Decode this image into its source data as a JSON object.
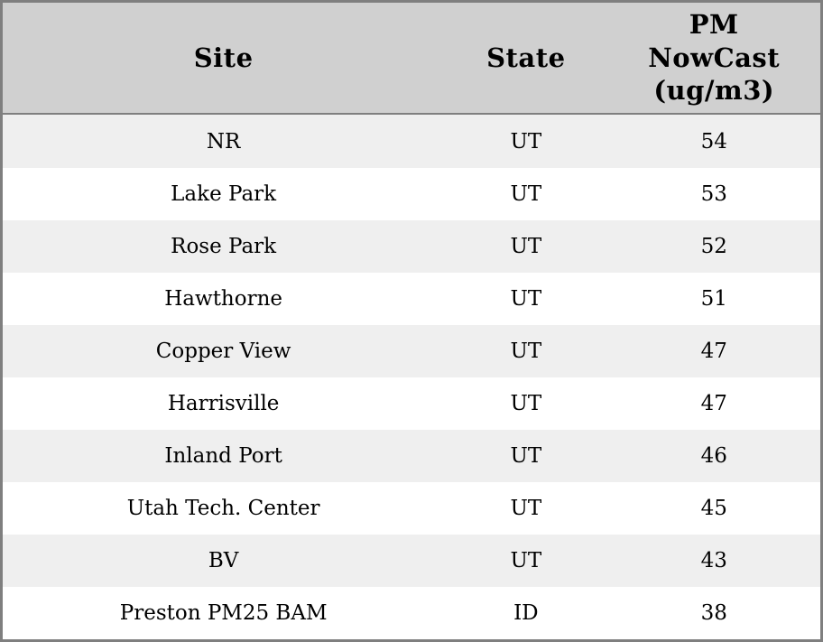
{
  "chart_data": {
    "type": "table",
    "title": "",
    "columns": [
      "Site",
      "State",
      "PM NowCast (ug/m3)"
    ],
    "rows": [
      [
        "NR",
        "UT",
        54
      ],
      [
        "Lake Park",
        "UT",
        53
      ],
      [
        "Rose Park",
        "UT",
        52
      ],
      [
        "Hawthorne",
        "UT",
        51
      ],
      [
        "Copper View",
        "UT",
        47
      ],
      [
        "Harrisville",
        "UT",
        47
      ],
      [
        "Inland Port",
        "UT",
        46
      ],
      [
        "Utah Tech. Center",
        "UT",
        45
      ],
      [
        "BV",
        "UT",
        43
      ],
      [
        "Preston PM25 BAM",
        "ID",
        38
      ]
    ],
    "layout_hints": {
      "header_wrapped_lines": [
        "PM",
        "NowCast",
        "(ug/m3)"
      ],
      "row_striping": "alternating, first data row shaded",
      "alignment": "all cells centered"
    }
  },
  "table": {
    "columns": [
      {
        "key": "site",
        "label": "Site",
        "display": "Site"
      },
      {
        "key": "state",
        "label": "State",
        "display": "State"
      },
      {
        "key": "pm_nowcast",
        "label": "PM NowCast (ug/m3)",
        "display": "PM\nNowCast\n(ug/m3)"
      }
    ],
    "rows": [
      {
        "site": "NR",
        "state": "UT",
        "pm_nowcast": "54"
      },
      {
        "site": "Lake Park",
        "state": "UT",
        "pm_nowcast": "53"
      },
      {
        "site": "Rose Park",
        "state": "UT",
        "pm_nowcast": "52"
      },
      {
        "site": "Hawthorne",
        "state": "UT",
        "pm_nowcast": "51"
      },
      {
        "site": "Copper View",
        "state": "UT",
        "pm_nowcast": "47"
      },
      {
        "site": "Harrisville",
        "state": "UT",
        "pm_nowcast": "47"
      },
      {
        "site": "Inland Port",
        "state": "UT",
        "pm_nowcast": "46"
      },
      {
        "site": "Utah Tech. Center",
        "state": "UT",
        "pm_nowcast": "45"
      },
      {
        "site": "BV",
        "state": "UT",
        "pm_nowcast": "43"
      },
      {
        "site": "Preston PM25 BAM",
        "state": "ID",
        "pm_nowcast": "38"
      }
    ]
  },
  "colors": {
    "outer_border": "#7f7f7f",
    "header_bg": "#d0d0d0",
    "row_alt_bg": "#efefef",
    "row_bg": "#ffffff",
    "text": "#000000"
  }
}
